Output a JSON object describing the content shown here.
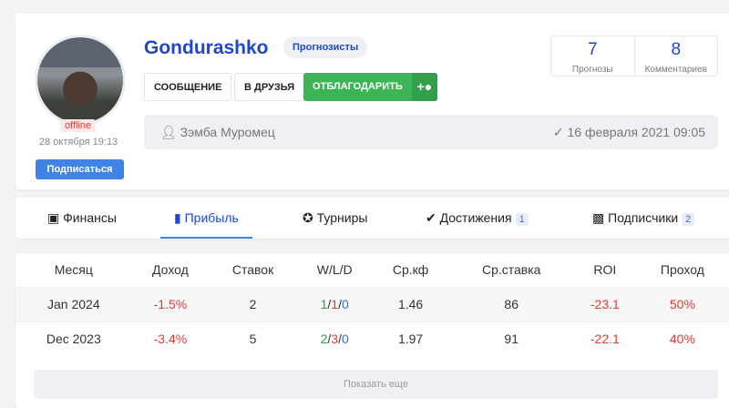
{
  "profile": {
    "name": "Gondurashko",
    "group": "Прогнозисты",
    "status": "offline",
    "last_seen": "28 октября 19:13",
    "subscribe": "Подписаться",
    "buttons": {
      "message": "СООБЩЕНИЕ",
      "friend": "В ДРУЗЬЯ",
      "thank": "ОТБЛАГОДАРИТЬ"
    },
    "stats": [
      {
        "value": "7",
        "label": "Прогнозы"
      },
      {
        "value": "8",
        "label": "Комментариев"
      }
    ],
    "real_name": "Зэмба Муромец",
    "registered": "16 февраля 2021 09:05"
  },
  "tabs": [
    {
      "label": "Финансы",
      "icon": "wallet-icon"
    },
    {
      "label": "Прибыль",
      "icon": "bar-chart-icon",
      "active": true
    },
    {
      "label": "Турниры",
      "icon": "star-icon"
    },
    {
      "label": "Достижения",
      "icon": "badge-check-icon",
      "count": "1"
    },
    {
      "label": "Подписчики",
      "icon": "id-badge-icon",
      "count": "2"
    }
  ],
  "table": {
    "headers": [
      "Месяц",
      "Доход",
      "Ставок",
      "W/L/D",
      "Ср.кф",
      "Ср.ставка",
      "ROI",
      "Проход"
    ],
    "rows": [
      {
        "month": "Jan 2024",
        "income": "-1.5%",
        "bets": "2",
        "w": "1",
        "l": "1",
        "d": "0",
        "avg_odds": "1.46",
        "avg_stake": "86",
        "roi": "-23.1",
        "pass": "50%"
      },
      {
        "month": "Dec 2023",
        "income": "-3.4%",
        "bets": "5",
        "w": "2",
        "l": "3",
        "d": "0",
        "avg_odds": "1.97",
        "avg_stake": "91",
        "roi": "-22.1",
        "pass": "40%"
      }
    ],
    "show_more": "Показать еще"
  },
  "colors": {
    "accent": "#1f47c9",
    "green": "#3db556",
    "negative": "#e53935"
  }
}
